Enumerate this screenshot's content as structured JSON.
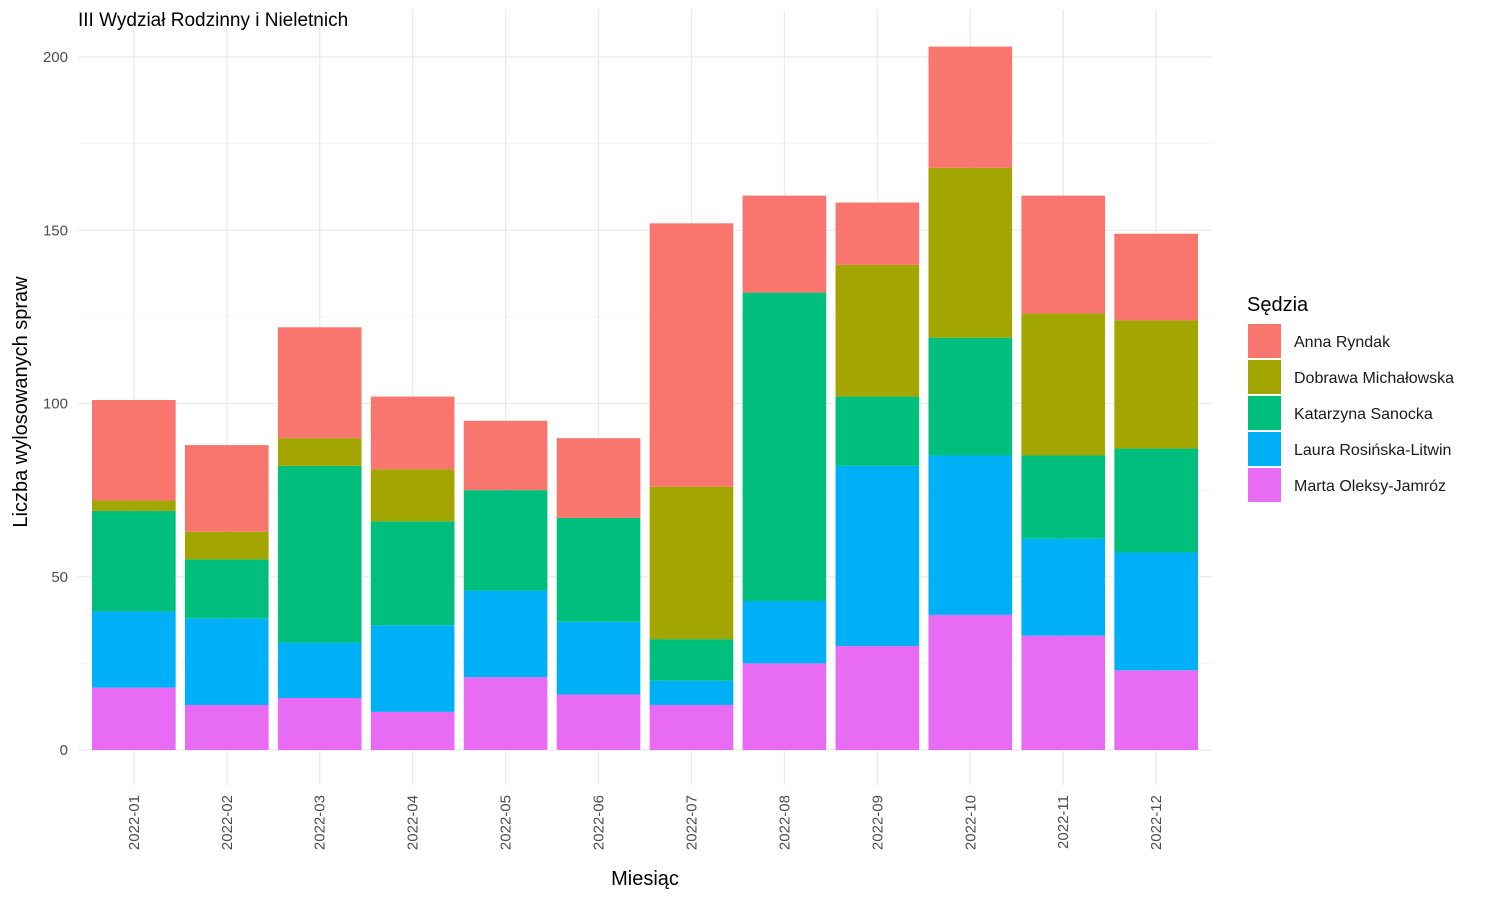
{
  "chart_data": {
    "type": "bar",
    "stacked": true,
    "title": "III Wydział Rodzinny i Nieletnich",
    "xlabel": "Miesiąc",
    "ylabel": "Liczba wylosowanych spraw",
    "ylim": [
      0,
      210
    ],
    "yticks": [
      0,
      50,
      100,
      150,
      200
    ],
    "grid": true,
    "legend_title": "Sędzia",
    "legend_position": "right",
    "categories": [
      "2022-01",
      "2022-02",
      "2022-03",
      "2022-04",
      "2022-05",
      "2022-06",
      "2022-07",
      "2022-08",
      "2022-09",
      "2022-10",
      "2022-11",
      "2022-12"
    ],
    "series": [
      {
        "name": "Anna Ryndak",
        "color": "#F8766D",
        "values": [
          29,
          25,
          32,
          21,
          20,
          23,
          76,
          28,
          18,
          35,
          34,
          25
        ]
      },
      {
        "name": "Dobrawa Michałowska",
        "color": "#A3A500",
        "values": [
          3,
          8,
          8,
          15,
          0,
          0,
          44,
          0,
          38,
          49,
          41,
          37
        ]
      },
      {
        "name": "Katarzyna Sanocka",
        "color": "#00BF7D",
        "values": [
          29,
          17,
          51,
          30,
          29,
          30,
          12,
          89,
          20,
          34,
          24,
          30
        ]
      },
      {
        "name": "Laura Rosińska-Litwin",
        "color": "#00B0F6",
        "values": [
          22,
          25,
          16,
          25,
          25,
          21,
          7,
          18,
          52,
          46,
          28,
          34
        ]
      },
      {
        "name": "Marta Oleksy-Jamróz",
        "color": "#E76BF3",
        "values": [
          18,
          13,
          15,
          11,
          21,
          16,
          13,
          25,
          30,
          39,
          33,
          23
        ]
      }
    ]
  }
}
